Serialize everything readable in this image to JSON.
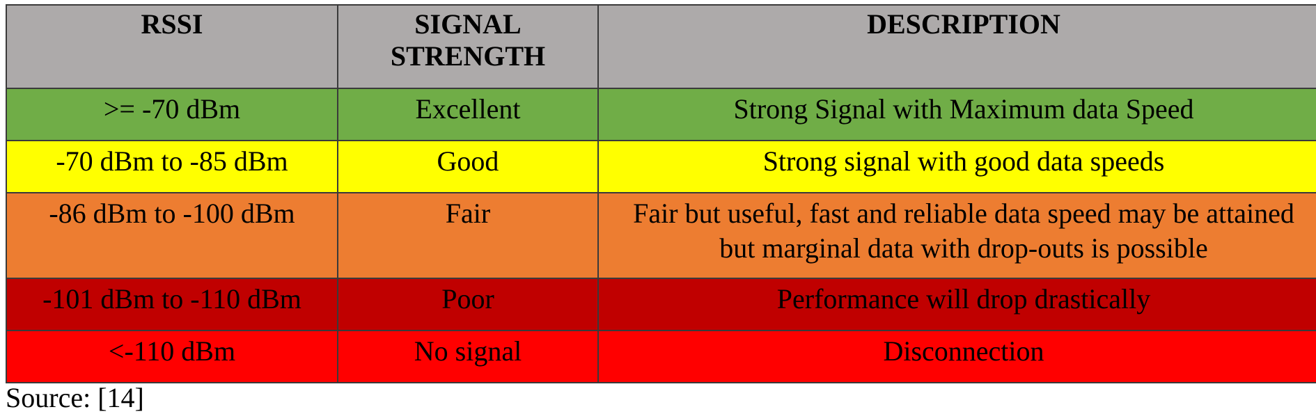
{
  "table": {
    "headers": [
      "RSSI",
      "SIGNAL\nSTRENGTH",
      "DESCRIPTION"
    ],
    "rows": [
      {
        "rssi": ">= -70 dBm",
        "strength": "Excellent",
        "description": "Strong Signal with Maximum data Speed",
        "color": "#70ad47"
      },
      {
        "rssi": "-70 dBm to -85 dBm",
        "strength": "Good",
        "description": "Strong signal with good data speeds",
        "color": "#ffff00"
      },
      {
        "rssi": "-86 dBm to -100 dBm",
        "strength": "Fair",
        "description": "Fair but useful, fast and reliable data speed may be attained",
        "description_line2": "but marginal data with drop-outs is possible",
        "color": "#ed7d31"
      },
      {
        "rssi": "-101 dBm to -110 dBm",
        "strength": "Poor",
        "description": "Performance will drop drastically",
        "color": "#c00000"
      },
      {
        "rssi": "<-110 dBm",
        "strength": "No signal",
        "description": "Disconnection",
        "color": "#ff0000"
      }
    ],
    "header_color": "#adaaaa"
  },
  "footer": {
    "source": "Source: [14]"
  }
}
